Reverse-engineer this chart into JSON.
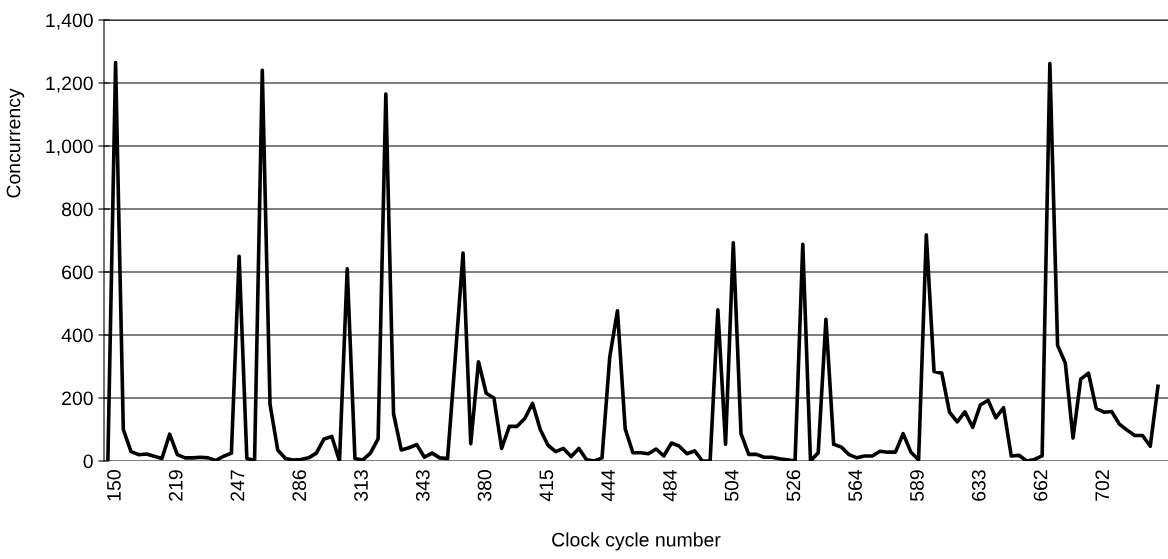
{
  "chart_data": {
    "type": "line",
    "xlabel": "Clock cycle number",
    "ylabel": "Concurrency",
    "categories": [
      null,
      "150",
      null,
      null,
      null,
      null,
      null,
      null,
      null,
      "219",
      null,
      null,
      null,
      null,
      null,
      null,
      null,
      "247",
      null,
      null,
      null,
      null,
      null,
      null,
      null,
      "286",
      null,
      null,
      null,
      null,
      null,
      null,
      null,
      "313",
      null,
      null,
      null,
      null,
      null,
      null,
      null,
      "343",
      null,
      null,
      null,
      null,
      null,
      null,
      null,
      "380",
      null,
      null,
      null,
      null,
      null,
      null,
      null,
      "415",
      null,
      null,
      null,
      null,
      null,
      null,
      null,
      "444",
      null,
      null,
      null,
      null,
      null,
      null,
      null,
      "484",
      null,
      null,
      null,
      null,
      null,
      null,
      null,
      "504",
      null,
      null,
      null,
      null,
      null,
      null,
      null,
      "526",
      null,
      null,
      null,
      null,
      null,
      null,
      null,
      "564",
      null,
      null,
      null,
      null,
      null,
      null,
      null,
      "589",
      null,
      null,
      null,
      null,
      null,
      null,
      null,
      "633",
      null,
      null,
      null,
      null,
      null,
      null,
      null,
      "662",
      null,
      null,
      null,
      null,
      null,
      null,
      null,
      "702",
      null,
      null,
      null,
      null,
      null,
      null,
      null
    ],
    "series": [
      {
        "color": "#000000",
        "values": [
          0,
          1265,
          100,
          30,
          20,
          22,
          15,
          8,
          85,
          20,
          10,
          10,
          12,
          10,
          2,
          15,
          25,
          650,
          8,
          2,
          1240,
          180,
          35,
          8,
          3,
          5,
          10,
          25,
          70,
          78,
          0,
          610,
          8,
          3,
          25,
          70,
          1165,
          150,
          35,
          42,
          52,
          12,
          25,
          10,
          8,
          330,
          660,
          55,
          315,
          215,
          200,
          40,
          110,
          110,
          135,
          183,
          100,
          50,
          30,
          40,
          14,
          40,
          4,
          0,
          10,
          330,
          477,
          102,
          26,
          26,
          23,
          38,
          16,
          57,
          47,
          23,
          32,
          0,
          0,
          480,
          53,
          693,
          87,
          21,
          21,
          12,
          12,
          7,
          4,
          0,
          688,
          0,
          26,
          450,
          53,
          44,
          20,
          10,
          16,
          16,
          31,
          28,
          28,
          87,
          28,
          4,
          718,
          284,
          279,
          155,
          124,
          156,
          107,
          178,
          193,
          137,
          169,
          16,
          18,
          0,
          5,
          16,
          1262,
          367,
          311,
          73,
          260,
          279,
          167,
          155,
          157,
          117,
          98,
          81,
          81,
          47,
          237
        ]
      }
    ],
    "ylim": [
      0,
      1400
    ],
    "yticks": [
      {
        "value": 0,
        "label": "0"
      },
      {
        "value": 200,
        "label": "200"
      },
      {
        "value": 400,
        "label": "400"
      },
      {
        "value": 600,
        "label": "600"
      },
      {
        "value": 800,
        "label": "800"
      },
      {
        "value": 1000,
        "label": "1,000"
      },
      {
        "value": 1200,
        "label": "1,200"
      },
      {
        "value": 1400,
        "label": "1,400"
      }
    ],
    "grid": "y",
    "marker": "none",
    "line_style": "solid"
  }
}
